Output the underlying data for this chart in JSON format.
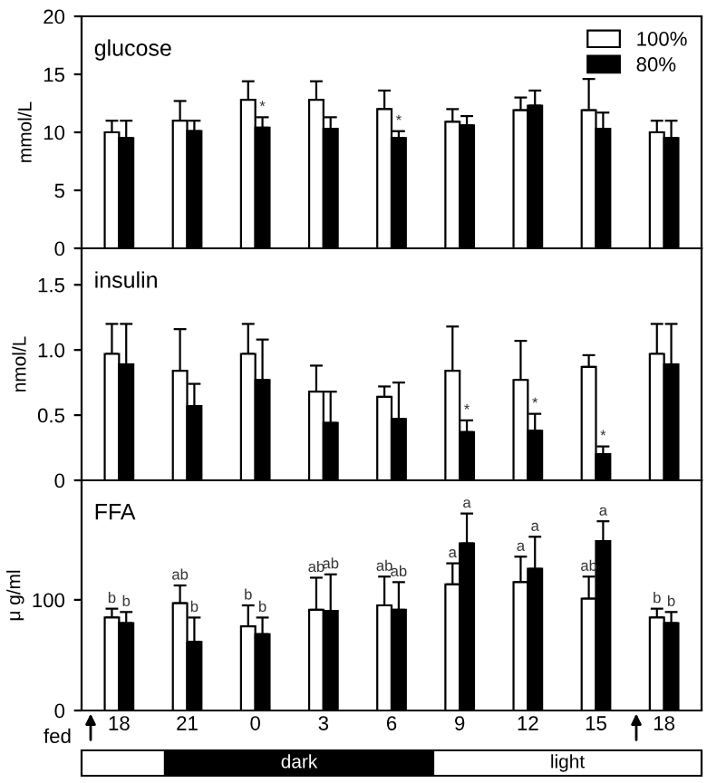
{
  "chart_data": [
    {
      "type": "bar",
      "title": "glucose",
      "ylabel": "mmol/L",
      "categories": [
        "18",
        "21",
        "0",
        "3",
        "6",
        "9",
        "12",
        "15",
        "18"
      ],
      "ylim": [
        0,
        20
      ],
      "yticks": [
        0,
        5,
        10,
        15,
        20
      ],
      "tick_labels": "y",
      "grid": false,
      "legend": "top right",
      "series": [
        {
          "name": "100%",
          "color": "#ffffff",
          "values": [
            10,
            11,
            12.8,
            12.8,
            12,
            10.9,
            11.9,
            11.9,
            10
          ],
          "errors": [
            [
              10,
              11
            ],
            [
              11,
              12.7
            ],
            [
              12.8,
              14.4
            ],
            [
              12.8,
              14.4
            ],
            [
              12,
              13.6
            ],
            [
              10.9,
              12
            ],
            [
              11.9,
              13
            ],
            [
              11.9,
              14.6
            ],
            [
              10,
              11
            ]
          ]
        },
        {
          "name": "80%",
          "color": "#000000",
          "values": [
            9.5,
            10.1,
            10.4,
            10.3,
            9.5,
            10.6,
            12.3,
            10.3,
            9.5
          ],
          "errors": [
            [
              9.5,
              11
            ],
            [
              10.1,
              11
            ],
            [
              10.4,
              11.3
            ],
            [
              10.3,
              11.3
            ],
            [
              9.5,
              10.1
            ],
            [
              10.6,
              11.4
            ],
            [
              12.3,
              13.6
            ],
            [
              10.3,
              11.7
            ],
            [
              9.5,
              11
            ]
          ],
          "value_labels": [
            null,
            null,
            "*",
            null,
            "*",
            null,
            null,
            null,
            null
          ]
        }
      ]
    },
    {
      "type": "bar",
      "title": "insulin",
      "ylabel": "nmol/L",
      "categories": [
        "18",
        "21",
        "0",
        "3",
        "6",
        "9",
        "12",
        "15",
        "18"
      ],
      "ylim": [
        0,
        1.78
      ],
      "yticks": [
        0,
        0.5,
        {
          "value": 1,
          "label": "1.0"
        },
        1.5
      ],
      "tick_labels": "y",
      "grid": false,
      "series": [
        {
          "color": "#ffffff",
          "values": [
            0.97,
            0.84,
            0.97,
            0.68,
            0.64,
            0.84,
            0.77,
            0.87,
            0.97
          ],
          "errors": [
            [
              0.97,
              1.2
            ],
            [
              0.84,
              1.16
            ],
            [
              0.97,
              1.2
            ],
            [
              0.68,
              0.88
            ],
            [
              0.64,
              0.72
            ],
            [
              0.84,
              1.18
            ],
            [
              0.77,
              1.07
            ],
            [
              0.87,
              0.96
            ],
            [
              0.97,
              1.2
            ]
          ]
        },
        {
          "color": "#000000",
          "values": [
            0.89,
            0.57,
            0.77,
            0.44,
            0.47,
            0.37,
            0.38,
            0.2,
            0.89
          ],
          "errors": [
            [
              0.89,
              1.2
            ],
            [
              0.57,
              0.74
            ],
            [
              0.77,
              1.08
            ],
            [
              0.44,
              0.68
            ],
            [
              0.47,
              0.75
            ],
            [
              0.37,
              0.46
            ],
            [
              0.38,
              0.51
            ],
            [
              0.2,
              0.26
            ],
            [
              0.89,
              1.2
            ]
          ],
          "value_labels": [
            null,
            null,
            null,
            null,
            null,
            "*",
            "*",
            "*",
            null
          ]
        }
      ]
    },
    {
      "type": "bar",
      "title": "FFA",
      "ylabel": "μ g/ml",
      "categories": [
        "18",
        "21",
        "0",
        "3",
        "6",
        "9",
        "12",
        "15",
        "18"
      ],
      "ylim": [
        0,
        208
      ],
      "yticks": [
        0,
        100
      ],
      "grid": false,
      "annotations": [
        "fed",
        "dark",
        "light"
      ],
      "series": [
        {
          "color": "#ffffff",
          "values": [
            84,
            97,
            76,
            91,
            95,
            114,
            116,
            101,
            84
          ],
          "errors": [
            [
              84,
              92
            ],
            [
              97,
              113
            ],
            [
              76,
              95
            ],
            [
              91,
              120
            ],
            [
              95,
              121
            ],
            [
              114,
              133
            ],
            [
              116,
              139
            ],
            [
              101,
              121
            ],
            [
              84,
              92
            ]
          ],
          "value_labels": [
            "b",
            "ab",
            "b",
            "ab",
            "ab",
            "a",
            "a",
            "ab",
            "b"
          ]
        },
        {
          "color": "#000000",
          "values": [
            79,
            62,
            69,
            90,
            91,
            151,
            128,
            153,
            79
          ],
          "errors": [
            [
              79,
              89
            ],
            [
              62,
              84
            ],
            [
              69,
              84
            ],
            [
              90,
              123
            ],
            [
              91,
              116
            ],
            [
              151,
              178
            ],
            [
              128,
              157
            ],
            [
              153,
              171
            ],
            [
              79,
              89
            ]
          ],
          "value_labels": [
            "b",
            "b",
            "b",
            "ab",
            "ab",
            "a",
            "a",
            "a",
            "b"
          ]
        }
      ]
    }
  ]
}
